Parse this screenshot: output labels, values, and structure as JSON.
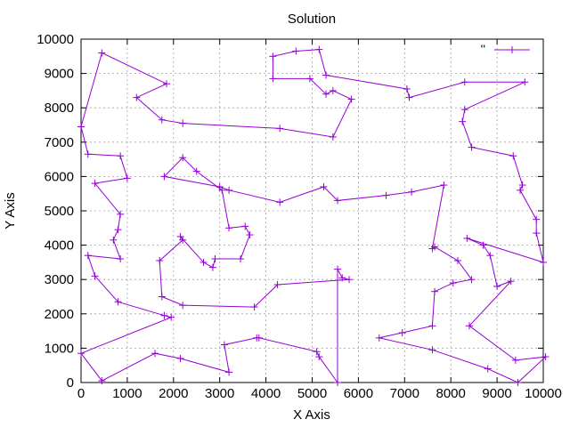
{
  "chart_data": {
    "type": "line",
    "title": "Solution",
    "xlabel": "X Axis",
    "ylabel": "Y Axis",
    "xlim": [
      0,
      10000
    ],
    "ylim": [
      0,
      10000
    ],
    "x_ticks": [
      "0",
      "1000",
      "2000",
      "3000",
      "4000",
      "5000",
      "6000",
      "7000",
      "8000",
      "9000",
      "10000"
    ],
    "y_ticks": [
      "0",
      "1000",
      "2000",
      "3000",
      "4000",
      "5000",
      "6000",
      "7000",
      "8000",
      "9000",
      "10000"
    ],
    "grid": true,
    "legend_position": "top-right",
    "series": [
      {
        "name": "''",
        "color": "#9400d3",
        "marker": "plus",
        "points": [
          [
            0,
            7450
          ],
          [
            150,
            6650
          ],
          [
            850,
            6600
          ],
          [
            1000,
            5950
          ],
          [
            300,
            5800
          ],
          [
            850,
            4900
          ],
          [
            800,
            4450
          ],
          [
            700,
            4150
          ],
          [
            850,
            3600
          ],
          [
            150,
            3700
          ],
          [
            300,
            3100
          ],
          [
            800,
            2350
          ],
          [
            1800,
            1950
          ],
          [
            1950,
            1900
          ],
          [
            0,
            850
          ],
          [
            450,
            50
          ],
          [
            1600,
            850
          ],
          [
            2150,
            700
          ],
          [
            3200,
            300
          ],
          [
            3100,
            1100
          ],
          [
            3800,
            1300
          ],
          [
            3850,
            1300
          ],
          [
            5100,
            900
          ],
          [
            5150,
            750
          ],
          [
            5550,
            0
          ],
          [
            5550,
            3300
          ],
          [
            5650,
            3050
          ],
          [
            5800,
            3000
          ],
          [
            4250,
            2850
          ],
          [
            3750,
            2200
          ],
          [
            2200,
            2250
          ],
          [
            1750,
            2500
          ],
          [
            1700,
            3550
          ],
          [
            2200,
            4150
          ],
          [
            2150,
            4250
          ],
          [
            2650,
            3500
          ],
          [
            2850,
            3350
          ],
          [
            2900,
            3600
          ],
          [
            3450,
            3600
          ],
          [
            3650,
            4300
          ],
          [
            3550,
            4550
          ],
          [
            3200,
            4500
          ],
          [
            3050,
            5600
          ],
          [
            2500,
            6150
          ],
          [
            2200,
            6550
          ],
          [
            1800,
            6000
          ],
          [
            3000,
            5700
          ],
          [
            3200,
            5600
          ],
          [
            4300,
            5250
          ],
          [
            5250,
            5700
          ],
          [
            5550,
            5300
          ],
          [
            6600,
            5450
          ],
          [
            7150,
            5550
          ],
          [
            7850,
            5750
          ],
          [
            7600,
            3900
          ],
          [
            7650,
            3950
          ],
          [
            8150,
            3550
          ],
          [
            8450,
            3000
          ],
          [
            8050,
            2900
          ],
          [
            7650,
            2650
          ],
          [
            7600,
            1650
          ],
          [
            6950,
            1450
          ],
          [
            6450,
            1300
          ],
          [
            7600,
            950
          ],
          [
            8800,
            400
          ],
          [
            9450,
            0
          ],
          [
            10050,
            750
          ],
          [
            9400,
            650
          ],
          [
            8400,
            1650
          ],
          [
            9300,
            2950
          ],
          [
            9000,
            2800
          ],
          [
            8850,
            3700
          ],
          [
            8700,
            4000
          ],
          [
            8350,
            4200
          ],
          [
            10000,
            3500
          ],
          [
            9850,
            4350
          ],
          [
            9850,
            4750
          ],
          [
            9500,
            5600
          ],
          [
            9550,
            5750
          ],
          [
            9350,
            6600
          ],
          [
            8450,
            6850
          ],
          [
            8250,
            7600
          ],
          [
            8300,
            7950
          ],
          [
            9600,
            8750
          ],
          [
            8300,
            8750
          ],
          [
            7100,
            8300
          ],
          [
            7050,
            8550
          ],
          [
            5300,
            8950
          ],
          [
            5150,
            9700
          ],
          [
            4650,
            9650
          ],
          [
            4150,
            9500
          ],
          [
            4150,
            8850
          ],
          [
            4950,
            8850
          ],
          [
            5300,
            8400
          ],
          [
            5450,
            8500
          ],
          [
            5850,
            8250
          ],
          [
            5450,
            7150
          ],
          [
            4300,
            7400
          ],
          [
            2200,
            7550
          ],
          [
            1750,
            7650
          ],
          [
            1200,
            8300
          ],
          [
            1850,
            8700
          ],
          [
            450,
            9600
          ],
          [
            0,
            7450
          ]
        ]
      }
    ]
  }
}
